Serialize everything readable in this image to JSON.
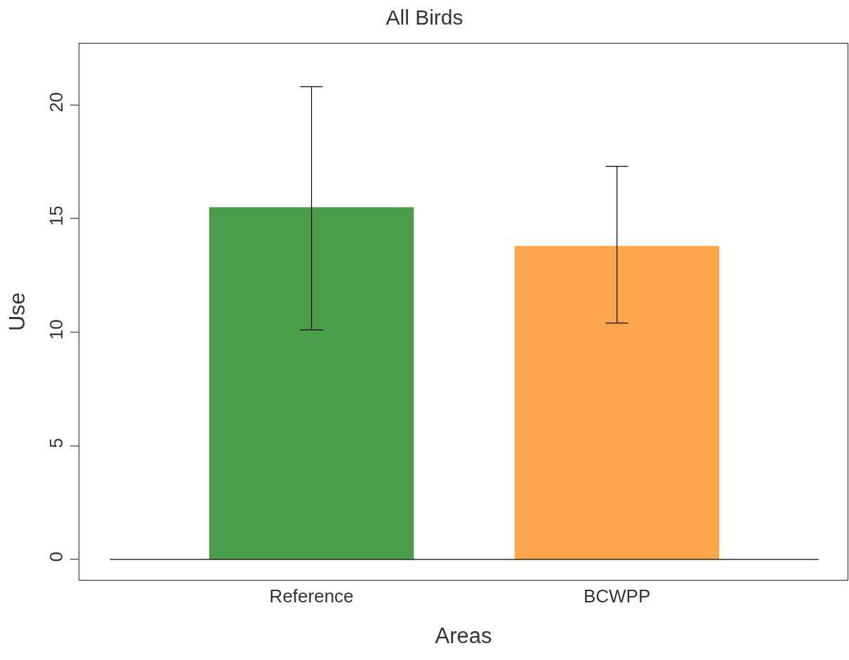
{
  "chart_data": {
    "type": "bar",
    "title": "All Birds",
    "xlabel": "Areas",
    "ylabel": "Use",
    "categories": [
      "Reference",
      "BCWPP"
    ],
    "values": [
      15.5,
      13.8
    ],
    "colors": [
      "#4a9e4a",
      "#fba64a"
    ],
    "errors": [
      [
        10.1,
        20.8
      ],
      [
        10.4,
        17.3
      ]
    ],
    "ylim": [
      -0.9,
      22.7
    ],
    "yticks": [
      0,
      5,
      10,
      15,
      20
    ],
    "ref_lines": [
      {
        "axis": "y",
        "value": 0,
        "color": "#000000"
      }
    ]
  }
}
